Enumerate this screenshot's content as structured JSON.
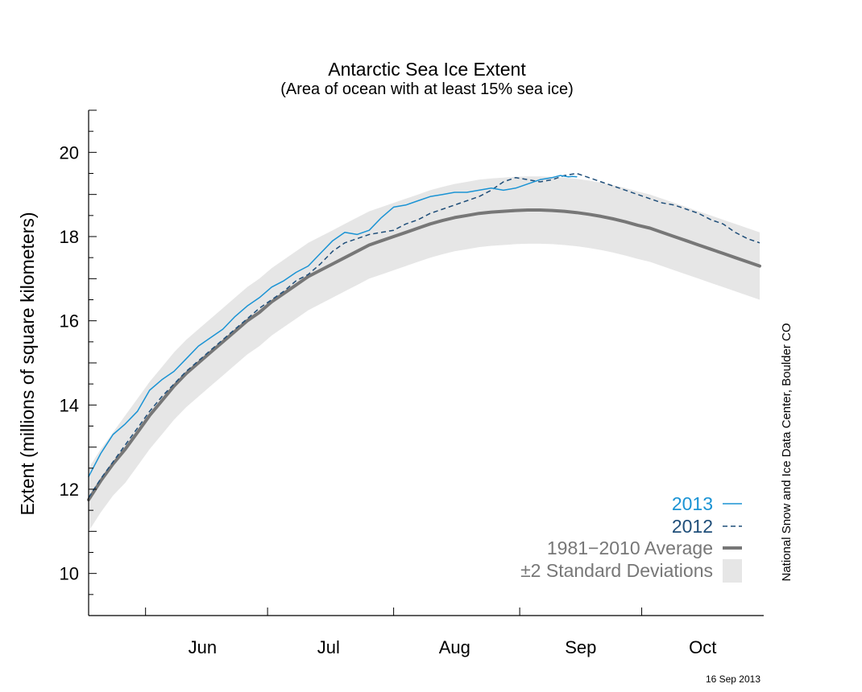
{
  "chart_data": {
    "type": "line",
    "title": "Antarctic Sea Ice Extent",
    "subtitle": "(Area of ocean with at least 15% sea ice)",
    "ylabel": "Extent (millions of square kilometers)",
    "ylim": [
      9,
      21
    ],
    "yticks": [
      10,
      12,
      14,
      16,
      18,
      20
    ],
    "x_unit": "day of year",
    "xlim": [
      138,
      304
    ],
    "month_labels": [
      {
        "label": "Jun",
        "day": 166
      },
      {
        "label": "Jul",
        "day": 197
      },
      {
        "label": "Aug",
        "day": 228
      },
      {
        "label": "Sep",
        "day": 259
      },
      {
        "label": "Oct",
        "day": 289
      }
    ],
    "month_boundaries": [
      152,
      182,
      213,
      244,
      274
    ],
    "series": [
      {
        "name": "2013",
        "color": "#1a93d4",
        "style": "solid",
        "x": [
          138,
          141,
          144,
          147,
          150,
          153,
          156,
          159,
          162,
          165,
          168,
          171,
          174,
          177,
          180,
          183,
          186,
          189,
          192,
          195,
          198,
          201,
          204,
          207,
          210,
          213,
          216,
          219,
          222,
          225,
          228,
          231,
          234,
          237,
          240,
          243,
          246,
          249,
          252,
          254,
          256,
          257,
          258
        ],
        "values": [
          12.3,
          12.85,
          13.3,
          13.55,
          13.85,
          14.35,
          14.6,
          14.8,
          15.1,
          15.4,
          15.6,
          15.8,
          16.1,
          16.35,
          16.55,
          16.8,
          16.95,
          17.15,
          17.3,
          17.6,
          17.9,
          18.1,
          18.05,
          18.15,
          18.45,
          18.7,
          18.75,
          18.85,
          18.95,
          19.0,
          19.05,
          19.05,
          19.1,
          19.15,
          19.1,
          19.15,
          19.25,
          19.35,
          19.4,
          19.45,
          19.42,
          19.43,
          19.42
        ]
      },
      {
        "name": "2012",
        "color": "#1f4e79",
        "style": "dashed",
        "x": [
          138,
          141,
          144,
          147,
          150,
          153,
          156,
          159,
          162,
          165,
          168,
          171,
          174,
          177,
          180,
          183,
          186,
          189,
          192,
          195,
          198,
          201,
          204,
          207,
          210,
          213,
          216,
          219,
          222,
          225,
          228,
          231,
          234,
          237,
          240,
          243,
          246,
          249,
          252,
          255,
          258,
          261,
          264,
          267,
          270,
          273,
          276,
          279,
          282,
          285,
          288,
          291,
          294,
          297,
          300,
          303
        ],
        "values": [
          11.8,
          12.25,
          12.65,
          13.05,
          13.45,
          13.85,
          14.2,
          14.5,
          14.8,
          15.05,
          15.3,
          15.55,
          15.8,
          16.05,
          16.3,
          16.5,
          16.7,
          16.95,
          17.1,
          17.35,
          17.65,
          17.85,
          17.95,
          18.05,
          18.1,
          18.15,
          18.3,
          18.4,
          18.55,
          18.65,
          18.75,
          18.85,
          18.95,
          19.1,
          19.3,
          19.4,
          19.35,
          19.3,
          19.35,
          19.45,
          19.5,
          19.4,
          19.3,
          19.2,
          19.1,
          19.0,
          18.9,
          18.8,
          18.75,
          18.65,
          18.55,
          18.4,
          18.3,
          18.1,
          17.95,
          17.85
        ]
      },
      {
        "name": "1981−2010 Average",
        "color": "#777777",
        "style": "solid-thick",
        "x": [
          138,
          141,
          144,
          147,
          150,
          153,
          156,
          159,
          162,
          165,
          168,
          171,
          174,
          177,
          180,
          183,
          186,
          189,
          192,
          195,
          198,
          201,
          204,
          207,
          210,
          213,
          216,
          219,
          222,
          225,
          228,
          231,
          234,
          237,
          240,
          243,
          246,
          249,
          252,
          255,
          258,
          261,
          264,
          267,
          270,
          273,
          276,
          279,
          282,
          285,
          288,
          291,
          294,
          297,
          300,
          303
        ],
        "values": [
          11.75,
          12.2,
          12.6,
          12.95,
          13.35,
          13.75,
          14.1,
          14.45,
          14.75,
          15.0,
          15.25,
          15.5,
          15.75,
          16.0,
          16.2,
          16.45,
          16.65,
          16.85,
          17.05,
          17.2,
          17.35,
          17.5,
          17.65,
          17.8,
          17.9,
          18.0,
          18.1,
          18.2,
          18.3,
          18.38,
          18.45,
          18.5,
          18.55,
          18.58,
          18.6,
          18.62,
          18.63,
          18.63,
          18.62,
          18.6,
          18.57,
          18.53,
          18.48,
          18.42,
          18.35,
          18.27,
          18.2,
          18.1,
          18.0,
          17.9,
          17.8,
          17.7,
          17.6,
          17.5,
          17.4,
          17.3
        ]
      }
    ],
    "band": {
      "name": "±2 Standard Deviations",
      "color": "#e6e6e6",
      "x": [
        138,
        141,
        144,
        147,
        150,
        153,
        156,
        159,
        162,
        165,
        168,
        171,
        174,
        177,
        180,
        183,
        186,
        189,
        192,
        195,
        198,
        201,
        204,
        207,
        210,
        213,
        216,
        219,
        222,
        225,
        228,
        231,
        234,
        237,
        240,
        243,
        246,
        249,
        252,
        255,
        258,
        261,
        264,
        267,
        270,
        273,
        276,
        279,
        282,
        285,
        288,
        291,
        294,
        297,
        300,
        303
      ],
      "upper": [
        12.5,
        12.95,
        13.35,
        13.75,
        14.15,
        14.55,
        14.9,
        15.25,
        15.55,
        15.8,
        16.05,
        16.3,
        16.55,
        16.8,
        17.0,
        17.25,
        17.45,
        17.65,
        17.85,
        18.0,
        18.15,
        18.3,
        18.45,
        18.6,
        18.7,
        18.8,
        18.9,
        19.0,
        19.1,
        19.18,
        19.25,
        19.3,
        19.35,
        19.38,
        19.4,
        19.42,
        19.43,
        19.43,
        19.42,
        19.4,
        19.37,
        19.33,
        19.28,
        19.22,
        19.15,
        19.07,
        19.0,
        18.9,
        18.8,
        18.7,
        18.6,
        18.5,
        18.4,
        18.3,
        18.2,
        18.1
      ],
      "lower": [
        11.0,
        11.45,
        11.85,
        12.15,
        12.55,
        12.95,
        13.3,
        13.65,
        13.95,
        14.2,
        14.45,
        14.7,
        14.95,
        15.2,
        15.4,
        15.65,
        15.85,
        16.05,
        16.25,
        16.4,
        16.55,
        16.7,
        16.85,
        17.0,
        17.1,
        17.2,
        17.3,
        17.4,
        17.5,
        17.58,
        17.65,
        17.7,
        17.75,
        17.78,
        17.8,
        17.82,
        17.83,
        17.83,
        17.82,
        17.8,
        17.77,
        17.73,
        17.68,
        17.62,
        17.55,
        17.47,
        17.4,
        17.3,
        17.2,
        17.1,
        17.0,
        16.9,
        16.8,
        16.7,
        16.6,
        16.5
      ]
    },
    "legend_position": "bottom-right",
    "grid": false
  },
  "credit": "National Snow and Ice Data Center, Boulder CO",
  "date_stamp": "16 Sep 2013"
}
